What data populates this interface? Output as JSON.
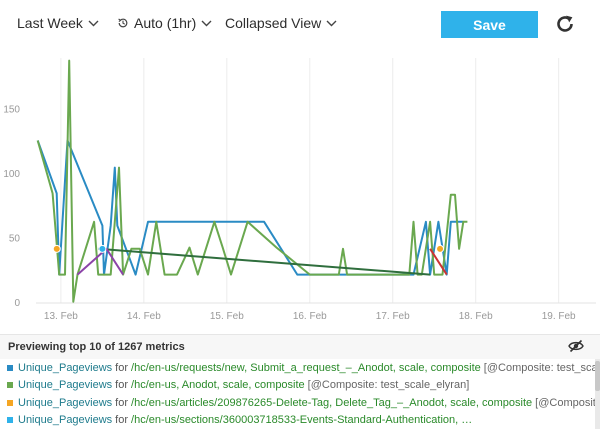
{
  "toolbar": {
    "time_range": "Last Week",
    "resolution": "Auto (1hr)",
    "view_mode": "Collapsed View",
    "save_label": "Save"
  },
  "chart_data": {
    "type": "line",
    "x_ticks": [
      "13. Feb",
      "14. Feb",
      "15. Feb",
      "16. Feb",
      "17. Feb",
      "18. Feb",
      "19. Feb"
    ],
    "y_ticks": [
      0,
      50,
      100,
      150
    ],
    "ylim": [
      0,
      190
    ],
    "xlim": [
      12.7,
      19.45
    ],
    "grid": "vertical",
    "series": [
      {
        "color": "#2a8bc4",
        "points": [
          [
            12.72,
            126
          ],
          [
            12.95,
            85
          ],
          [
            12.98,
            22
          ],
          [
            13.08,
            126
          ],
          [
            13.5,
            60
          ],
          [
            13.52,
            22
          ],
          [
            13.6,
            60
          ],
          [
            13.65,
            105
          ],
          [
            13.68,
            60
          ],
          [
            13.9,
            22
          ],
          [
            14.05,
            63
          ],
          [
            14.4,
            63
          ],
          [
            14.75,
            63
          ],
          [
            15.15,
            63
          ],
          [
            15.45,
            63
          ],
          [
            15.85,
            22
          ],
          [
            17.25,
            22
          ],
          [
            17.4,
            63
          ],
          [
            17.45,
            22
          ],
          [
            17.55,
            63
          ],
          [
            17.65,
            22
          ],
          [
            17.7,
            63
          ],
          [
            17.85,
            63
          ]
        ]
      },
      {
        "color": "#6aa84f",
        "points": [
          [
            12.72,
            126
          ],
          [
            12.9,
            85
          ],
          [
            12.98,
            22
          ],
          [
            13.05,
            22
          ],
          [
            13.1,
            188
          ],
          [
            13.15,
            1
          ],
          [
            13.2,
            22
          ],
          [
            13.4,
            63
          ],
          [
            13.45,
            22
          ],
          [
            13.6,
            22
          ],
          [
            13.7,
            105
          ],
          [
            13.75,
            22
          ],
          [
            13.85,
            42
          ],
          [
            13.95,
            42
          ],
          [
            14.05,
            22
          ],
          [
            14.15,
            63
          ],
          [
            14.25,
            22
          ],
          [
            14.4,
            22
          ],
          [
            14.55,
            43
          ],
          [
            14.65,
            22
          ],
          [
            14.85,
            63
          ],
          [
            14.95,
            43
          ],
          [
            15.05,
            22
          ],
          [
            15.25,
            63
          ],
          [
            15.6,
            43
          ],
          [
            16.0,
            22
          ],
          [
            16.35,
            22
          ],
          [
            16.4,
            42
          ],
          [
            16.45,
            22
          ],
          [
            17.2,
            22
          ],
          [
            17.25,
            63
          ],
          [
            17.3,
            22
          ],
          [
            17.35,
            22
          ],
          [
            17.45,
            63
          ],
          [
            17.5,
            22
          ],
          [
            17.6,
            22
          ],
          [
            17.7,
            84
          ],
          [
            17.75,
            84
          ],
          [
            17.8,
            42
          ],
          [
            17.85,
            63
          ],
          [
            17.9,
            63
          ]
        ]
      },
      {
        "color": "#2f6e3d",
        "points": [
          [
            13.45,
            42
          ],
          [
            17.45,
            22
          ]
        ]
      },
      {
        "color": "#8c44a8",
        "points": [
          [
            13.2,
            22
          ],
          [
            13.55,
            42
          ],
          [
            13.75,
            22
          ]
        ]
      },
      {
        "color": "#cc3333",
        "points": [
          [
            17.45,
            42
          ],
          [
            17.65,
            22
          ]
        ]
      }
    ],
    "markers": [
      {
        "color": "#f5a623",
        "x": 12.95,
        "y": 42
      },
      {
        "color": "#2fb2ea",
        "x": 13.5,
        "y": 42
      },
      {
        "color": "#f5a623",
        "x": 17.57,
        "y": 42
      }
    ]
  },
  "legend": {
    "header": "Previewing top 10 of 1267 metrics",
    "for_word": "for",
    "rows": [
      {
        "color": "#2a8bc4",
        "name": "Unique_Pageviews",
        "path": "/hc/en-us/requests/new, Submit_a_request_–_Anodot, scale, composite",
        "composite": "[@Composite: test_scale_…"
      },
      {
        "color": "#6aa84f",
        "name": "Unique_Pageviews",
        "path": "/hc/en-us, Anodot, scale, composite",
        "composite": "[@Composite: test_scale_elyran]"
      },
      {
        "color": "#f5a623",
        "name": "Unique_Pageviews",
        "path": "/hc/en-us/articles/209876265-Delete-Tag, Delete_Tag_–_Anodot, scale, composite",
        "composite": "[@Composite:…"
      },
      {
        "color": "#2fb2ea",
        "name": "Unique_Pageviews",
        "path": "/hc/en-us/sections/360003718533-Events-Standard-Authentication, …",
        "composite": ""
      }
    ]
  }
}
